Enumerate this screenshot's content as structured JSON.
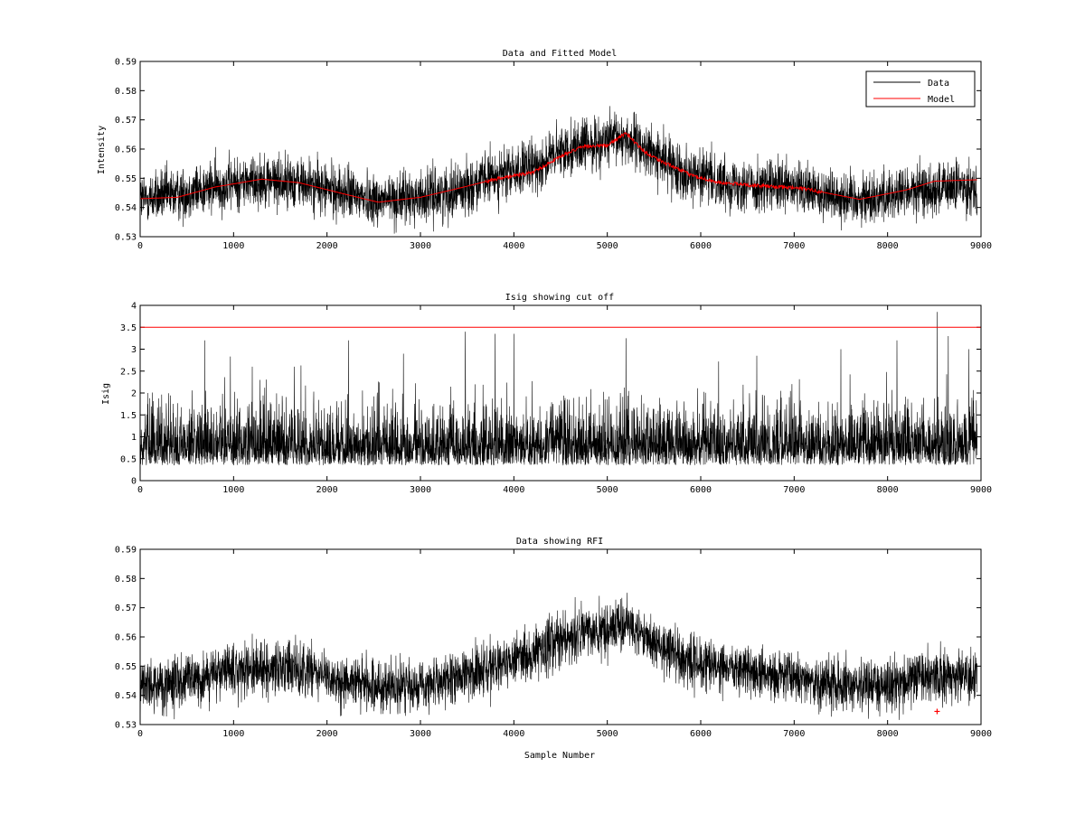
{
  "chart_data": [
    {
      "type": "line",
      "title": "Data and Fitted Model",
      "xlabel": "",
      "ylabel": "Intensity",
      "xlim": [
        0,
        9000
      ],
      "ylim": [
        0.53,
        0.59
      ],
      "xticks": [
        "0",
        "1000",
        "2000",
        "3000",
        "4000",
        "5000",
        "6000",
        "7000",
        "8000",
        "9000"
      ],
      "yticks": [
        "0.53",
        "0.54",
        "0.55",
        "0.56",
        "0.57",
        "0.58",
        "0.59"
      ],
      "legend": {
        "placement": "top-right",
        "entries": [
          {
            "name": "Data",
            "color": "#000000"
          },
          {
            "name": "Model",
            "color": "#ff0000"
          }
        ]
      },
      "series": [
        {
          "name": "Data",
          "color": "#000000",
          "n_samples": 8960,
          "noise_amplitude": 0.0045,
          "trend": [
            [
              0,
              0.543
            ],
            [
              400,
              0.5445
            ],
            [
              800,
              0.547
            ],
            [
              1300,
              0.5495
            ],
            [
              1700,
              0.5485
            ],
            [
              2100,
              0.5455
            ],
            [
              2600,
              0.5425
            ],
            [
              3000,
              0.5435
            ],
            [
              3400,
              0.546
            ],
            [
              3800,
              0.5505
            ],
            [
              4200,
              0.5535
            ],
            [
              4600,
              0.5605
            ],
            [
              5000,
              0.5625
            ],
            [
              5200,
              0.564
            ],
            [
              5500,
              0.558
            ],
            [
              5800,
              0.5525
            ],
            [
              6200,
              0.549
            ],
            [
              6600,
              0.5475
            ],
            [
              7100,
              0.546
            ],
            [
              7700,
              0.543
            ],
            [
              8300,
              0.5455
            ],
            [
              8960,
              0.5475
            ]
          ]
        },
        {
          "name": "Model",
          "color": "#ff0000",
          "points": [
            [
              0,
              0.543
            ],
            [
              400,
              0.5435
            ],
            [
              800,
              0.547
            ],
            [
              1300,
              0.5497
            ],
            [
              1700,
              0.5485
            ],
            [
              2200,
              0.5445
            ],
            [
              2550,
              0.5418
            ],
            [
              3000,
              0.5435
            ],
            [
              3400,
              0.5465
            ],
            [
              3800,
              0.5497
            ],
            [
              4200,
              0.552
            ],
            [
              4500,
              0.5575
            ],
            [
              4750,
              0.561
            ],
            [
              5000,
              0.5612
            ],
            [
              5200,
              0.5655
            ],
            [
              5400,
              0.559
            ],
            [
              5600,
              0.5555
            ],
            [
              5900,
              0.551
            ],
            [
              6200,
              0.5485
            ],
            [
              6600,
              0.5475
            ],
            [
              7100,
              0.5465
            ],
            [
              7700,
              0.5428
            ],
            [
              8200,
              0.546
            ],
            [
              8500,
              0.549
            ],
            [
              8960,
              0.5495
            ]
          ]
        }
      ]
    },
    {
      "type": "line",
      "title": "Isig showing cut off",
      "xlabel": "",
      "ylabel": "Isig",
      "xlim": [
        0,
        9000
      ],
      "ylim": [
        0,
        4
      ],
      "xticks": [
        "0",
        "1000",
        "2000",
        "3000",
        "4000",
        "5000",
        "6000",
        "7000",
        "8000",
        "9000"
      ],
      "yticks": [
        "0",
        "0.5",
        "1",
        "1.5",
        "2",
        "2.5",
        "3",
        "3.5",
        "4"
      ],
      "cutoff": {
        "value": 3.5,
        "color": "#ff0000"
      },
      "series": [
        {
          "name": "Isig",
          "color": "#000000",
          "n_samples": 8960,
          "typical_max": 1.6,
          "peaks": [
            [
              80,
              2.0
            ],
            [
              690,
              3.2
            ],
            [
              1200,
              2.6
            ],
            [
              1650,
              2.6
            ],
            [
              2230,
              3.2
            ],
            [
              3480,
              3.4
            ],
            [
              3800,
              3.35
            ],
            [
              4000,
              3.35
            ],
            [
              5200,
              3.25
            ],
            [
              6600,
              2.85
            ],
            [
              7500,
              3.0
            ],
            [
              8100,
              3.2
            ],
            [
              8530,
              3.85
            ],
            [
              8650,
              3.3
            ],
            [
              8870,
              3.0
            ]
          ]
        }
      ]
    },
    {
      "type": "line",
      "title": "Data showing RFI",
      "xlabel": "Sample Number",
      "ylabel": "",
      "xlim": [
        0,
        9000
      ],
      "ylim": [
        0.53,
        0.59
      ],
      "xticks": [
        "0",
        "1000",
        "2000",
        "3000",
        "4000",
        "5000",
        "6000",
        "7000",
        "8000",
        "9000"
      ],
      "yticks": [
        "0.53",
        "0.54",
        "0.55",
        "0.56",
        "0.57",
        "0.58",
        "0.59"
      ],
      "series": [
        {
          "name": "Data",
          "color": "#000000",
          "n_samples": 8960,
          "noise_amplitude": 0.0045,
          "trend": [
            [
              0,
              0.543
            ],
            [
              400,
              0.5445
            ],
            [
              800,
              0.547
            ],
            [
              1300,
              0.5495
            ],
            [
              1700,
              0.5485
            ],
            [
              2100,
              0.5455
            ],
            [
              2600,
              0.5425
            ],
            [
              3000,
              0.5435
            ],
            [
              3400,
              0.546
            ],
            [
              3800,
              0.5505
            ],
            [
              4200,
              0.5535
            ],
            [
              4600,
              0.5605
            ],
            [
              5000,
              0.5625
            ],
            [
              5200,
              0.564
            ],
            [
              5500,
              0.558
            ],
            [
              5800,
              0.5525
            ],
            [
              6200,
              0.549
            ],
            [
              6600,
              0.5475
            ],
            [
              7100,
              0.546
            ],
            [
              7700,
              0.543
            ],
            [
              8300,
              0.5455
            ],
            [
              8960,
              0.5475
            ]
          ]
        },
        {
          "name": "RFI",
          "color": "#ff0000",
          "marker": "+",
          "points": [
            [
              8530,
              0.5345
            ]
          ]
        }
      ]
    }
  ]
}
